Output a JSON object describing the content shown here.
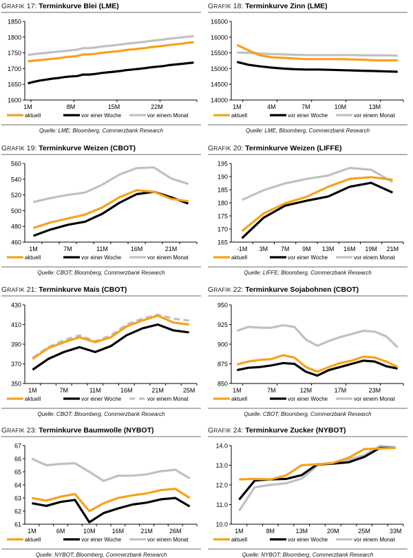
{
  "legend_labels": [
    "aktuell",
    "vor einer Woche",
    "vor einem Monat"
  ],
  "colors": {
    "aktuell": "#f7a11a",
    "woche": "#000000",
    "monat": "#c0c0c0",
    "rule": "#b3b3b3"
  },
  "title_prefix": "Grafik",
  "chart_data": [
    {
      "id": 17,
      "type": "line",
      "title": "Terminkurve Blei (LME)",
      "source": "Quelle: LME; Bloomberg, Commerzbank Research",
      "xlabel": "",
      "ylabel": "",
      "ylim": [
        1600,
        1850
      ],
      "yticks": [
        1600,
        1650,
        1700,
        1750,
        1800,
        1850
      ],
      "n": 28,
      "xtick_labels": [
        "1M",
        "8M",
        "15M",
        "22M"
      ],
      "xtick_at": [
        0,
        7,
        14,
        21
      ],
      "xgrid_ticks": [
        0,
        7,
        14,
        21
      ],
      "series": [
        {
          "name": "aktuell",
          "values": [
            1723,
            1725,
            1727,
            1729,
            1731,
            1733,
            1736,
            1738,
            1740,
            1745,
            1745,
            1747,
            1750,
            1752,
            1754,
            1756,
            1759,
            1761,
            1763,
            1765,
            1768,
            1770,
            1772,
            1775,
            1777,
            1779,
            1782,
            1784
          ]
        },
        {
          "name": "vor einer Woche",
          "values": [
            1653,
            1658,
            1662,
            1665,
            1668,
            1670,
            1673,
            1675,
            1676,
            1681,
            1681,
            1683,
            1686,
            1688,
            1690,
            1692,
            1695,
            1697,
            1699,
            1701,
            1704,
            1706,
            1708,
            1711,
            1713,
            1715,
            1717,
            1719
          ]
        },
        {
          "name": "vor einem Monat",
          "values": [
            1743,
            1746,
            1748,
            1750,
            1752,
            1754,
            1756,
            1758,
            1760,
            1765,
            1765,
            1767,
            1770,
            1772,
            1774,
            1776,
            1779,
            1781,
            1783,
            1785,
            1788,
            1790,
            1792,
            1795,
            1797,
            1799,
            1801,
            1803
          ]
        }
      ]
    },
    {
      "id": 18,
      "type": "line",
      "title": "Terminkurve Zinn (LME)",
      "source": "Quelle: LME, Bloomberg, Commerzbank Research",
      "xlabel": "",
      "ylabel": "",
      "ylim": [
        14000,
        16500
      ],
      "yticks": [
        14000,
        14500,
        15000,
        15500,
        16000,
        16500
      ],
      "n": 15,
      "xtick_labels": [
        "1M",
        "4M",
        "7M",
        "10M",
        "13M"
      ],
      "xtick_at": [
        0,
        3,
        6,
        9,
        12
      ],
      "xgrid_ticks": [
        0,
        3,
        6,
        9,
        12
      ],
      "series": [
        {
          "name": "aktuell",
          "values": [
            15750,
            15580,
            15420,
            15360,
            15340,
            15320,
            15300,
            15300,
            15300,
            15300,
            15290,
            15280,
            15260,
            15260,
            15260
          ]
        },
        {
          "name": "vor einer Woche",
          "values": [
            15210,
            15120,
            15070,
            15030,
            15000,
            14980,
            14970,
            14970,
            14960,
            14950,
            14940,
            14930,
            14920,
            14910,
            14900
          ]
        },
        {
          "name": "vor einem Monat",
          "values": [
            15510,
            15500,
            15480,
            15460,
            15450,
            15440,
            15430,
            15430,
            15430,
            15430,
            15430,
            15420,
            15420,
            15420,
            15410
          ]
        }
      ]
    },
    {
      "id": 19,
      "type": "line",
      "title": "Terminkurve Weizen (CBOT)",
      "source": "Quelle: CBOT; Bloomberg, Commerzbank Research",
      "xlabel": "",
      "ylabel": "",
      "ylim": [
        460,
        560
      ],
      "yticks": [
        460,
        480,
        500,
        520,
        540,
        560
      ],
      "n": 10,
      "xtick_labels": [
        "1M",
        "7M",
        "11M",
        "16M",
        "21M"
      ],
      "xtick_at": [
        0,
        2,
        4,
        6,
        8
      ],
      "xgrid_ticks": [
        0,
        1,
        2,
        3,
        4,
        5,
        6,
        7,
        8,
        9
      ],
      "series": [
        {
          "name": "aktuell",
          "values": [
            478,
            485,
            490,
            495,
            504,
            517,
            526,
            524,
            515,
            512
          ]
        },
        {
          "name": "vor einer Woche",
          "values": [
            468,
            476,
            482,
            486,
            496,
            510,
            521,
            524,
            517,
            509
          ]
        },
        {
          "name": "vor einem Monat",
          "values": [
            511,
            516,
            520,
            523,
            533,
            546,
            554,
            555,
            541,
            534
          ]
        }
      ]
    },
    {
      "id": 20,
      "type": "line",
      "title": "Terminkurve Weizen (LIFFE)",
      "source": "Quelle: LIFFE; Bloomberg, Commerzbank Research",
      "xlabel": "",
      "ylabel": "",
      "ylim": [
        165,
        195
      ],
      "yticks": [
        165,
        170,
        175,
        180,
        185,
        190,
        195
      ],
      "n": 8,
      "xtick_labels": [
        "-1M",
        "3M",
        "7M",
        "9M",
        "13M",
        "16M",
        "19M",
        "21M"
      ],
      "xtick_at": [
        0,
        1,
        2,
        3,
        4,
        5,
        6,
        7
      ],
      "xgrid_ticks": [
        0,
        1,
        2,
        3,
        4,
        5,
        6,
        7
      ],
      "series": [
        {
          "name": "aktuell",
          "values": [
            169.2,
            175.9,
            179.8,
            182.3,
            186.1,
            189.1,
            189.8,
            188.8
          ]
        },
        {
          "name": "vor einer Woche",
          "values": [
            166.5,
            174.3,
            178.9,
            180.8,
            182.4,
            186.1,
            187.6,
            183.9
          ]
        },
        {
          "name": "vor einem Monat",
          "values": [
            181.1,
            184.8,
            187.4,
            189.1,
            190.4,
            193.3,
            192.6,
            187.9
          ]
        }
      ]
    },
    {
      "id": 21,
      "type": "line",
      "title": "Terminkurve Mais (CBOT)",
      "source": "Quelle: CBOT; Bloomberg, Commerzbank Research",
      "xlabel": "",
      "ylabel": "",
      "ylim": [
        350,
        430
      ],
      "yticks": [
        350,
        370,
        390,
        410,
        430
      ],
      "n": 11,
      "xtick_labels": [
        "1M",
        "7M",
        "11M",
        "16M",
        "21M",
        "25M"
      ],
      "xtick_at": [
        0,
        2,
        4,
        6,
        8,
        10
      ],
      "xgrid_ticks": [
        0,
        1,
        2,
        3,
        4,
        5,
        6,
        7,
        8,
        9,
        10
      ],
      "series": [
        {
          "name": "aktuell",
          "values": [
            375,
            386,
            392,
            397,
            392,
            397,
            408,
            414,
            419,
            412,
            410
          ]
        },
        {
          "name": "vor einer Woche",
          "values": [
            364,
            375,
            382,
            387,
            382,
            388,
            399,
            406,
            410,
            404,
            402
          ]
        },
        {
          "name": "vor einem Monat",
          "dashed": true,
          "values": [
            376,
            387,
            394,
            399,
            393,
            399,
            410,
            416,
            420,
            416,
            414
          ]
        }
      ]
    },
    {
      "id": 22,
      "type": "line",
      "title": "Terminkurve Sojabohnen (CBOT)",
      "source": "Quelle: CBOT; Bloomberg, Commerzbank Research",
      "xlabel": "",
      "ylabel": "",
      "ylim": [
        850,
        950
      ],
      "yticks": [
        850,
        875,
        900,
        925,
        950
      ],
      "n": 15,
      "xtick_labels": [
        "1M",
        "7M",
        "12M",
        "17M",
        "23M"
      ],
      "xtick_at": [
        0,
        3,
        6,
        9,
        12
      ],
      "xgrid_ticks": [
        0,
        3,
        6,
        9,
        12
      ],
      "series": [
        {
          "name": "aktuell",
          "values": [
            874,
            878,
            880,
            881,
            886,
            883,
            871,
            865,
            871,
            876,
            879,
            884,
            883,
            878,
            871
          ]
        },
        {
          "name": "vor einer Woche",
          "values": [
            867,
            870,
            871,
            873,
            876,
            875,
            865,
            860,
            867,
            871,
            875,
            879,
            878,
            872,
            869
          ]
        },
        {
          "name": "vor einem Monat",
          "values": [
            917,
            922,
            921,
            921,
            924,
            922,
            906,
            898,
            904,
            909,
            913,
            917,
            916,
            910,
            896
          ]
        }
      ]
    },
    {
      "id": 23,
      "type": "line",
      "title": "Terminkurve Baumwolle (NYBOT)",
      "source": "Quelle: NYBOT; Bloomberg, Commerzbank Research",
      "xlabel": "",
      "ylabel": "",
      "ylim": [
        61,
        67
      ],
      "yticks": [
        61,
        62,
        63,
        64,
        65,
        66,
        67
      ],
      "n": 12,
      "xtick_labels": [
        "1M",
        "6M",
        "10M",
        "16M",
        "21M",
        "26M"
      ],
      "xtick_at": [
        0,
        2,
        4,
        6,
        8,
        10
      ],
      "xgrid_ticks": [
        0,
        1,
        2,
        3,
        4,
        5,
        6,
        7,
        8,
        9,
        10,
        11
      ],
      "series": [
        {
          "name": "aktuell",
          "values": [
            63.0,
            62.8,
            63.1,
            63.3,
            62.0,
            62.6,
            63.0,
            63.2,
            63.35,
            63.6,
            63.7,
            63.0
          ]
        },
        {
          "name": "vor einer Woche",
          "values": [
            62.6,
            62.4,
            62.7,
            62.85,
            61.15,
            61.85,
            62.2,
            62.5,
            62.65,
            62.9,
            63.0,
            62.35
          ]
        },
        {
          "name": "vor einem Monat",
          "values": [
            66.0,
            65.5,
            65.6,
            65.65,
            65.0,
            64.3,
            64.7,
            64.7,
            64.8,
            65.05,
            65.15,
            64.5
          ]
        }
      ]
    },
    {
      "id": 24,
      "type": "line",
      "title": "Terminkurve Zucker (NYBOT)",
      "source": "Quelle: NYBOT; Bloomberg, Commerzbank Research",
      "xlabel": "",
      "ylabel": "",
      "ylim": [
        10.0,
        14.0
      ],
      "yticks": [
        10.0,
        11.0,
        12.0,
        13.0,
        14.0
      ],
      "ydecimals": 1,
      "n": 11,
      "xtick_labels": [
        "1M",
        "8M",
        "13M",
        "20M",
        "25M",
        "33M"
      ],
      "xtick_at": [
        0,
        2,
        4,
        6,
        8,
        10
      ],
      "xgrid_ticks": [
        0,
        1,
        2,
        3,
        4,
        5,
        6,
        7,
        8,
        9,
        10
      ],
      "series": [
        {
          "name": "aktuell",
          "values": [
            12.28,
            12.3,
            12.28,
            12.48,
            13.0,
            13.05,
            13.12,
            13.38,
            13.82,
            13.85,
            13.88
          ]
        },
        {
          "name": "vor einer Woche",
          "values": [
            11.25,
            12.22,
            12.28,
            12.3,
            12.5,
            13.05,
            13.08,
            13.15,
            13.42,
            13.88,
            13.88
          ]
        },
        {
          "name": "vor einem Monat",
          "values": [
            10.68,
            11.88,
            12.0,
            12.08,
            12.32,
            12.98,
            13.1,
            13.28,
            13.52,
            13.98,
            13.9
          ]
        }
      ]
    }
  ]
}
